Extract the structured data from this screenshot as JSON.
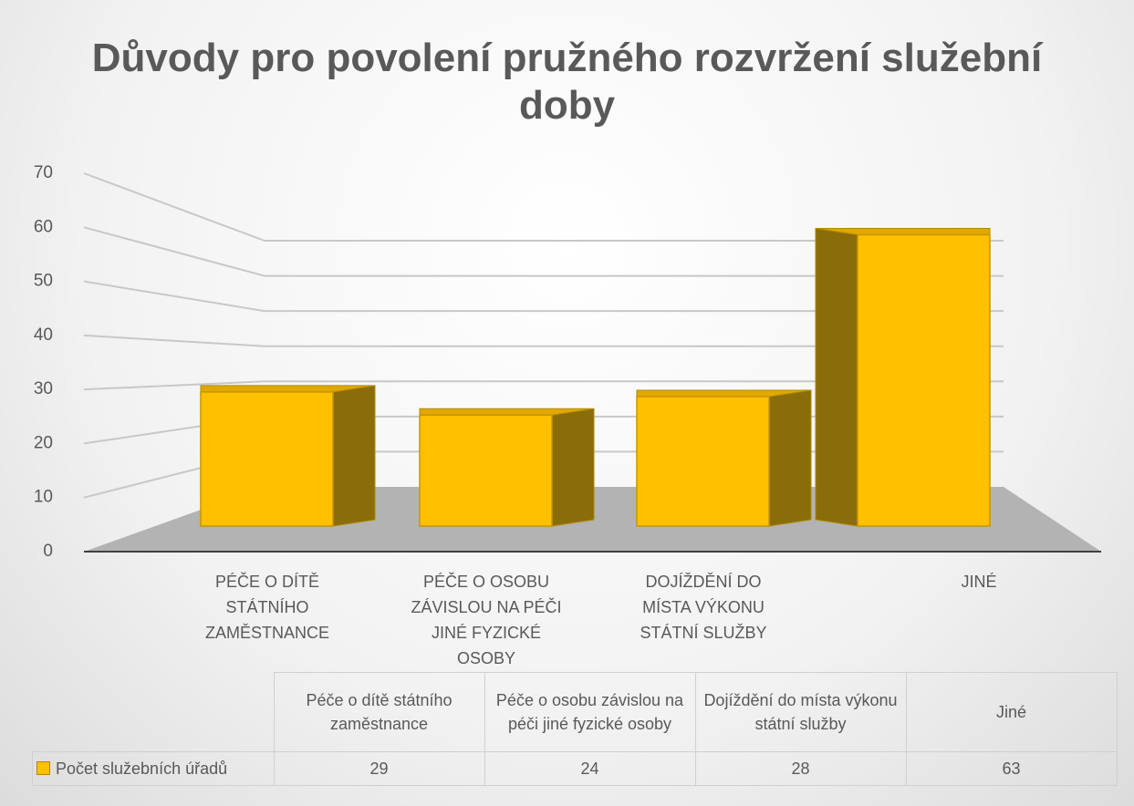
{
  "chart_data": {
    "type": "bar3d",
    "title": "Důvody pro povolení pružného rozvržení služební doby",
    "categories": [
      "PÉČE O DÍTĚ STÁTNÍHO ZAMĚSTNANCE",
      "PÉČE O OSOBU ZÁVISLOU NA PÉČI JINÉ FYZICKÉ OSOBY",
      "DOJÍŽDĚNÍ DO MÍSTA VÝKONU STÁTNÍ SLUŽBY",
      "JINÉ"
    ],
    "table_headers": [
      "Péče o dítě státního zaměstnance",
      "Péče o osobu závislou na péči jiné fyzické osoby",
      "Dojíždění do místa výkonu státní služby",
      "Jiné"
    ],
    "series": [
      {
        "name": "Počet služebních úřadů",
        "color": "#ffc000",
        "values": [
          29,
          24,
          28,
          63
        ]
      }
    ],
    "ylim": [
      0,
      70
    ],
    "yticks": [
      0,
      10,
      20,
      30,
      40,
      50,
      60,
      70
    ],
    "grid": true
  }
}
